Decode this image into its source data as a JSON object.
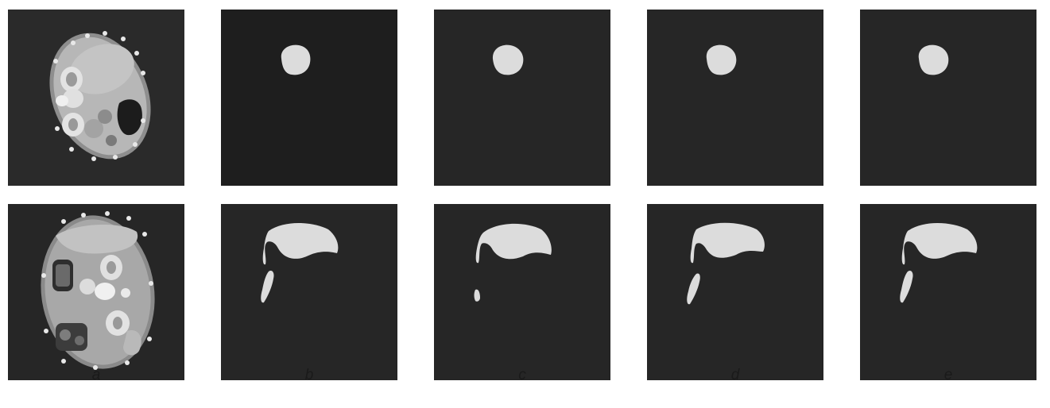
{
  "figure": {
    "columns": [
      {
        "id": "a",
        "label": "a",
        "content": "ct-scan"
      },
      {
        "id": "b",
        "label": "b",
        "content": "segmentation-mask"
      },
      {
        "id": "c",
        "label": "c",
        "content": "segmentation-mask"
      },
      {
        "id": "d",
        "label": "d",
        "content": "segmentation-mask"
      },
      {
        "id": "e",
        "label": "e",
        "content": "segmentation-mask"
      }
    ],
    "rows": 2,
    "colors": {
      "panel_background": "#262626",
      "mask_fill": "#dcdcdc",
      "page_background": "#ffffff"
    }
  }
}
